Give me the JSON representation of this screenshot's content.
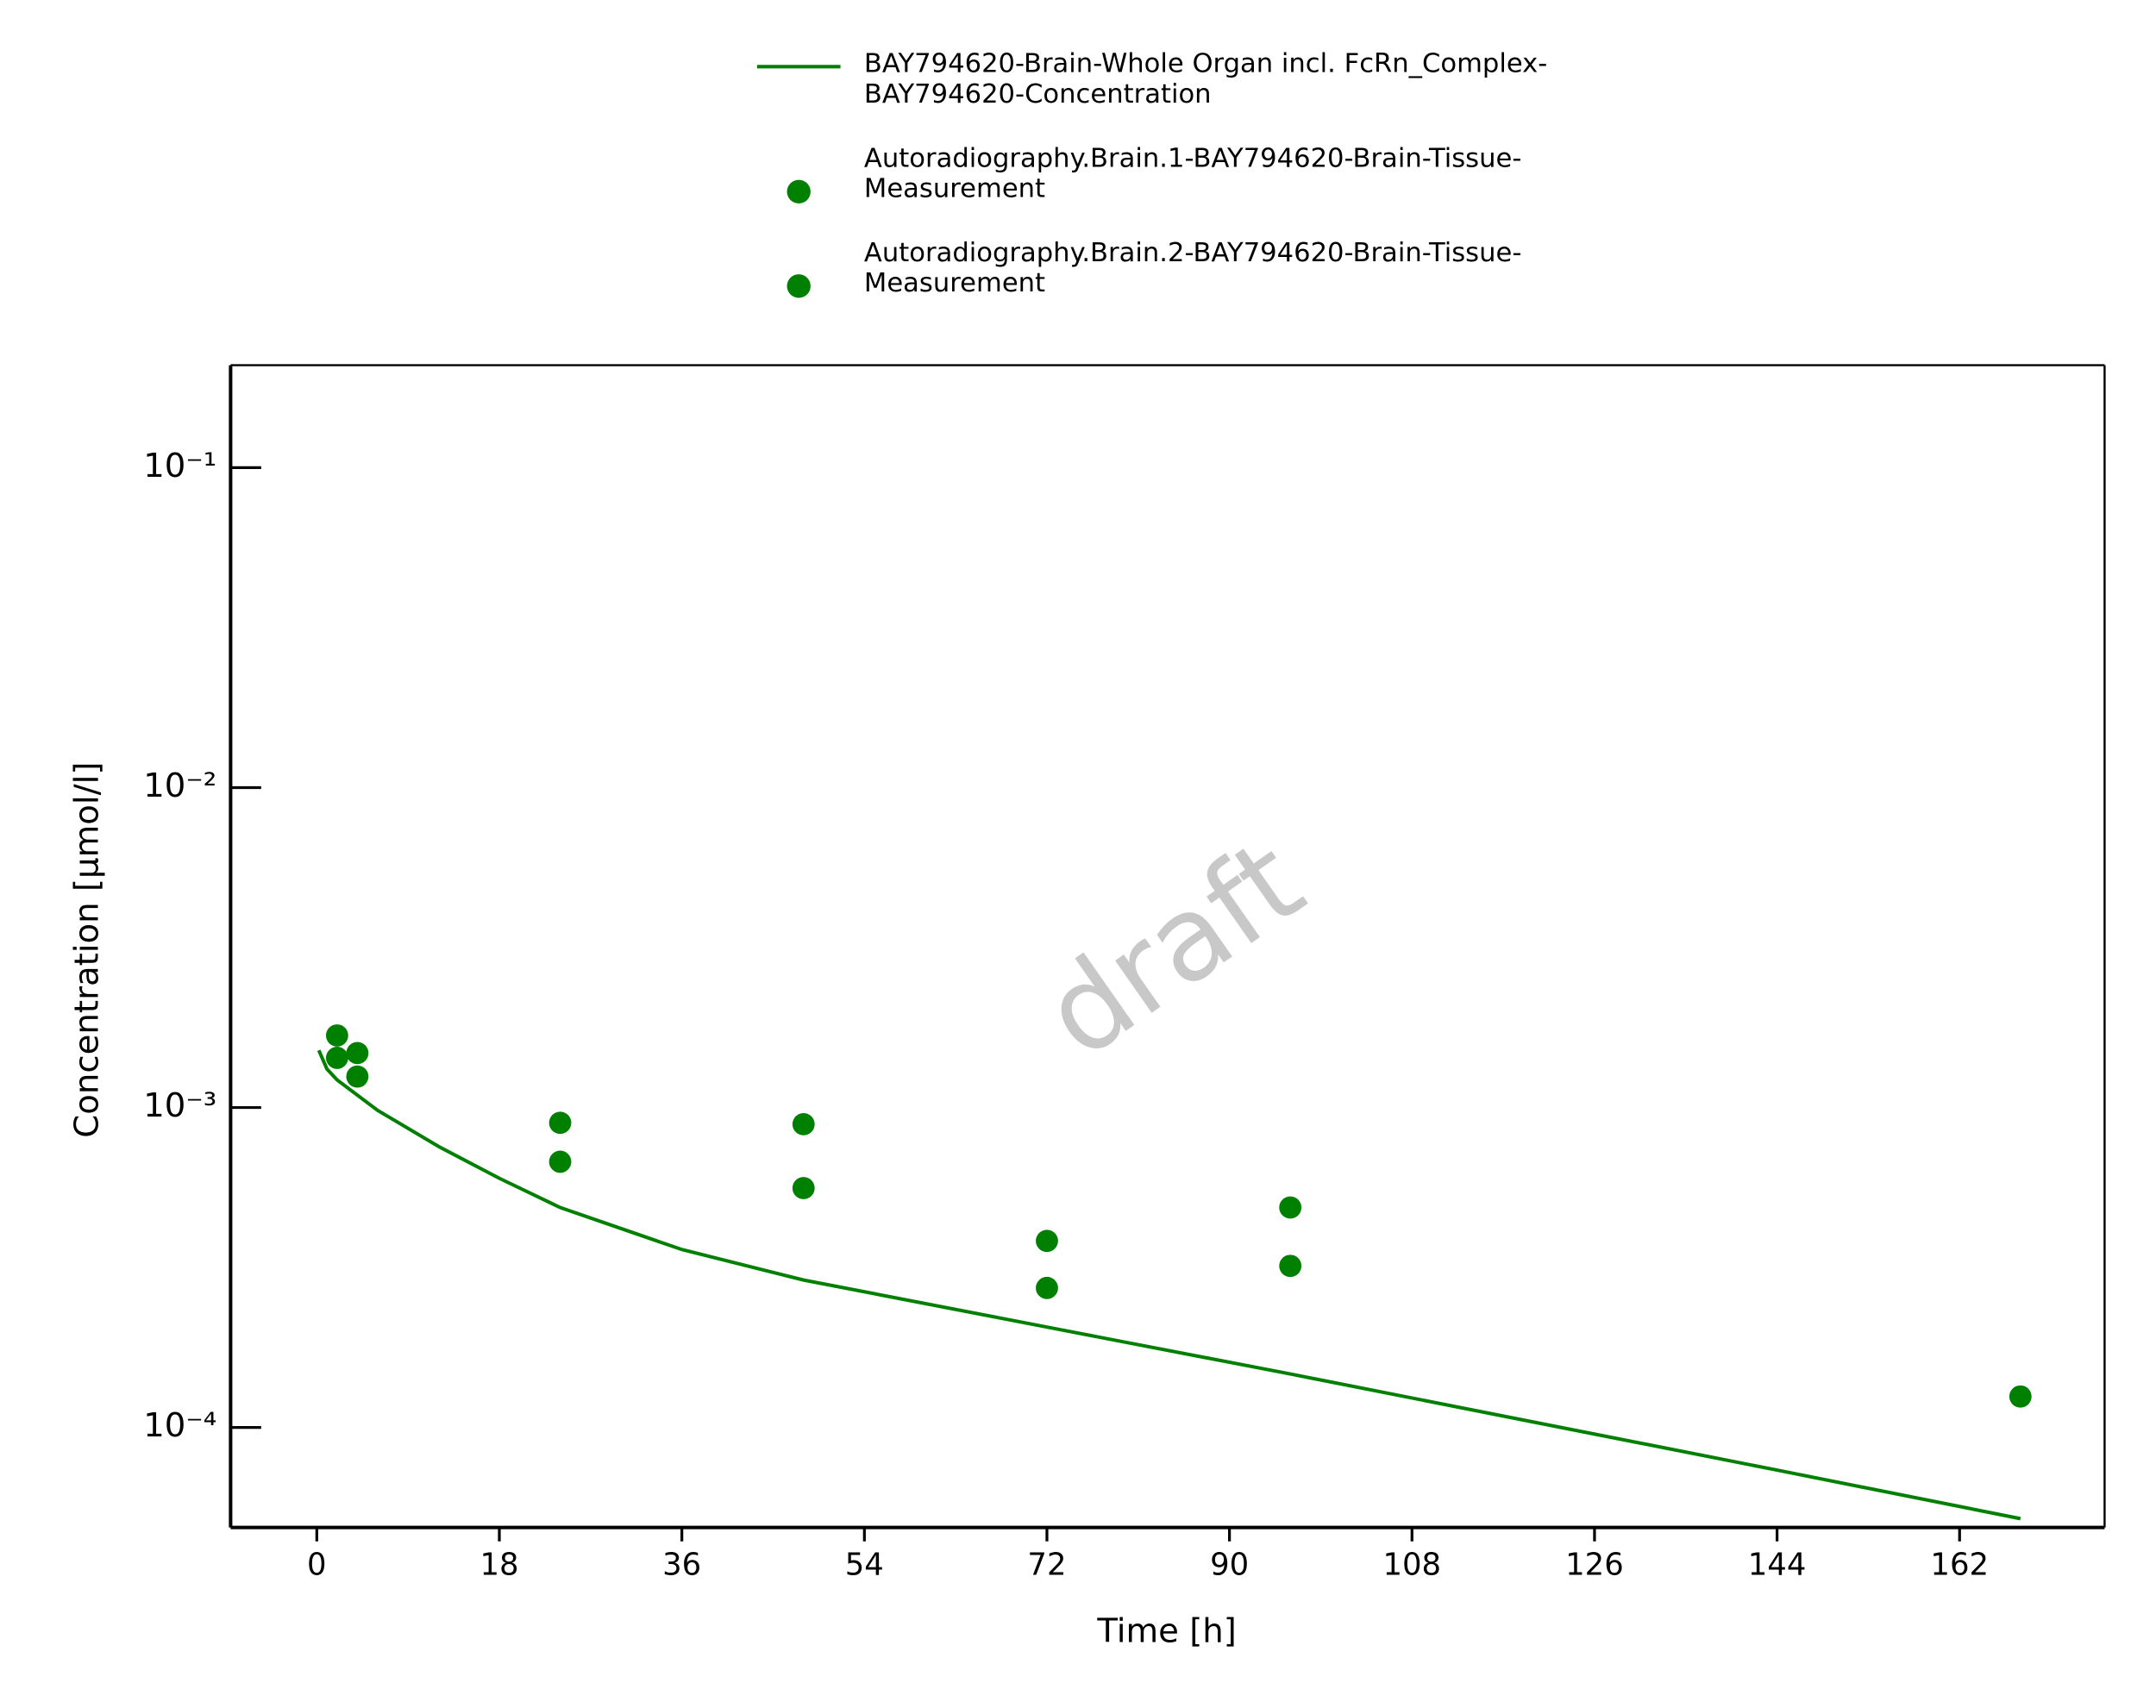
{
  "chart_data": {
    "type": "line",
    "x_label": "Time [h]",
    "y_label": "Concentration [µmol/l]",
    "watermark": "draft",
    "y_log": true,
    "xlim": [
      -8.5,
      176.3
    ],
    "ylim": [
      4.87e-05,
      0.209
    ],
    "xticks": [
      0,
      18,
      36,
      54,
      72,
      90,
      108,
      126,
      144,
      162
    ],
    "yticks": [
      {
        "value": 0.1,
        "label": "10⁻¹"
      },
      {
        "value": 0.01,
        "label": "10⁻²"
      },
      {
        "value": 0.001,
        "label": "10⁻³"
      },
      {
        "value": 0.0001,
        "label": "10⁻⁴"
      }
    ],
    "series": [
      {
        "name": "BAY794620-Brain-Whole Organ incl. FcRn_Complex-BAY794620-Concentration",
        "color": "#008000",
        "style": "line",
        "x": [
          0.2,
          1,
          2,
          6,
          12,
          18,
          24,
          36,
          48,
          72,
          96,
          120,
          144,
          168
        ],
        "values": [
          0.00151,
          0.00132,
          0.00122,
          0.00098,
          0.000756,
          0.000601,
          0.000487,
          0.00036,
          0.000289,
          0.000206,
          0.000147,
          0.000104,
          7.36e-05,
          5.19e-05
        ]
      },
      {
        "name": "Autoradiography.Brain.1-BAY794620-Brain-Tissue-Measurement",
        "color": "#008000",
        "style": "scatter",
        "x": [
          2,
          4,
          24,
          48,
          72,
          96,
          168
        ],
        "values": [
          0.00168,
          0.00148,
          0.000896,
          0.000887,
          0.000383,
          0.000487,
          0.000125
        ]
      },
      {
        "name": "Autoradiography.Brain.2-BAY794620-Brain-Tissue-Measurement",
        "color": "#008000",
        "style": "scatter",
        "x": [
          2,
          4,
          24,
          48,
          72,
          96
        ],
        "values": [
          0.00143,
          0.00125,
          0.000677,
          0.00056,
          0.000273,
          0.00032
        ]
      }
    ]
  }
}
